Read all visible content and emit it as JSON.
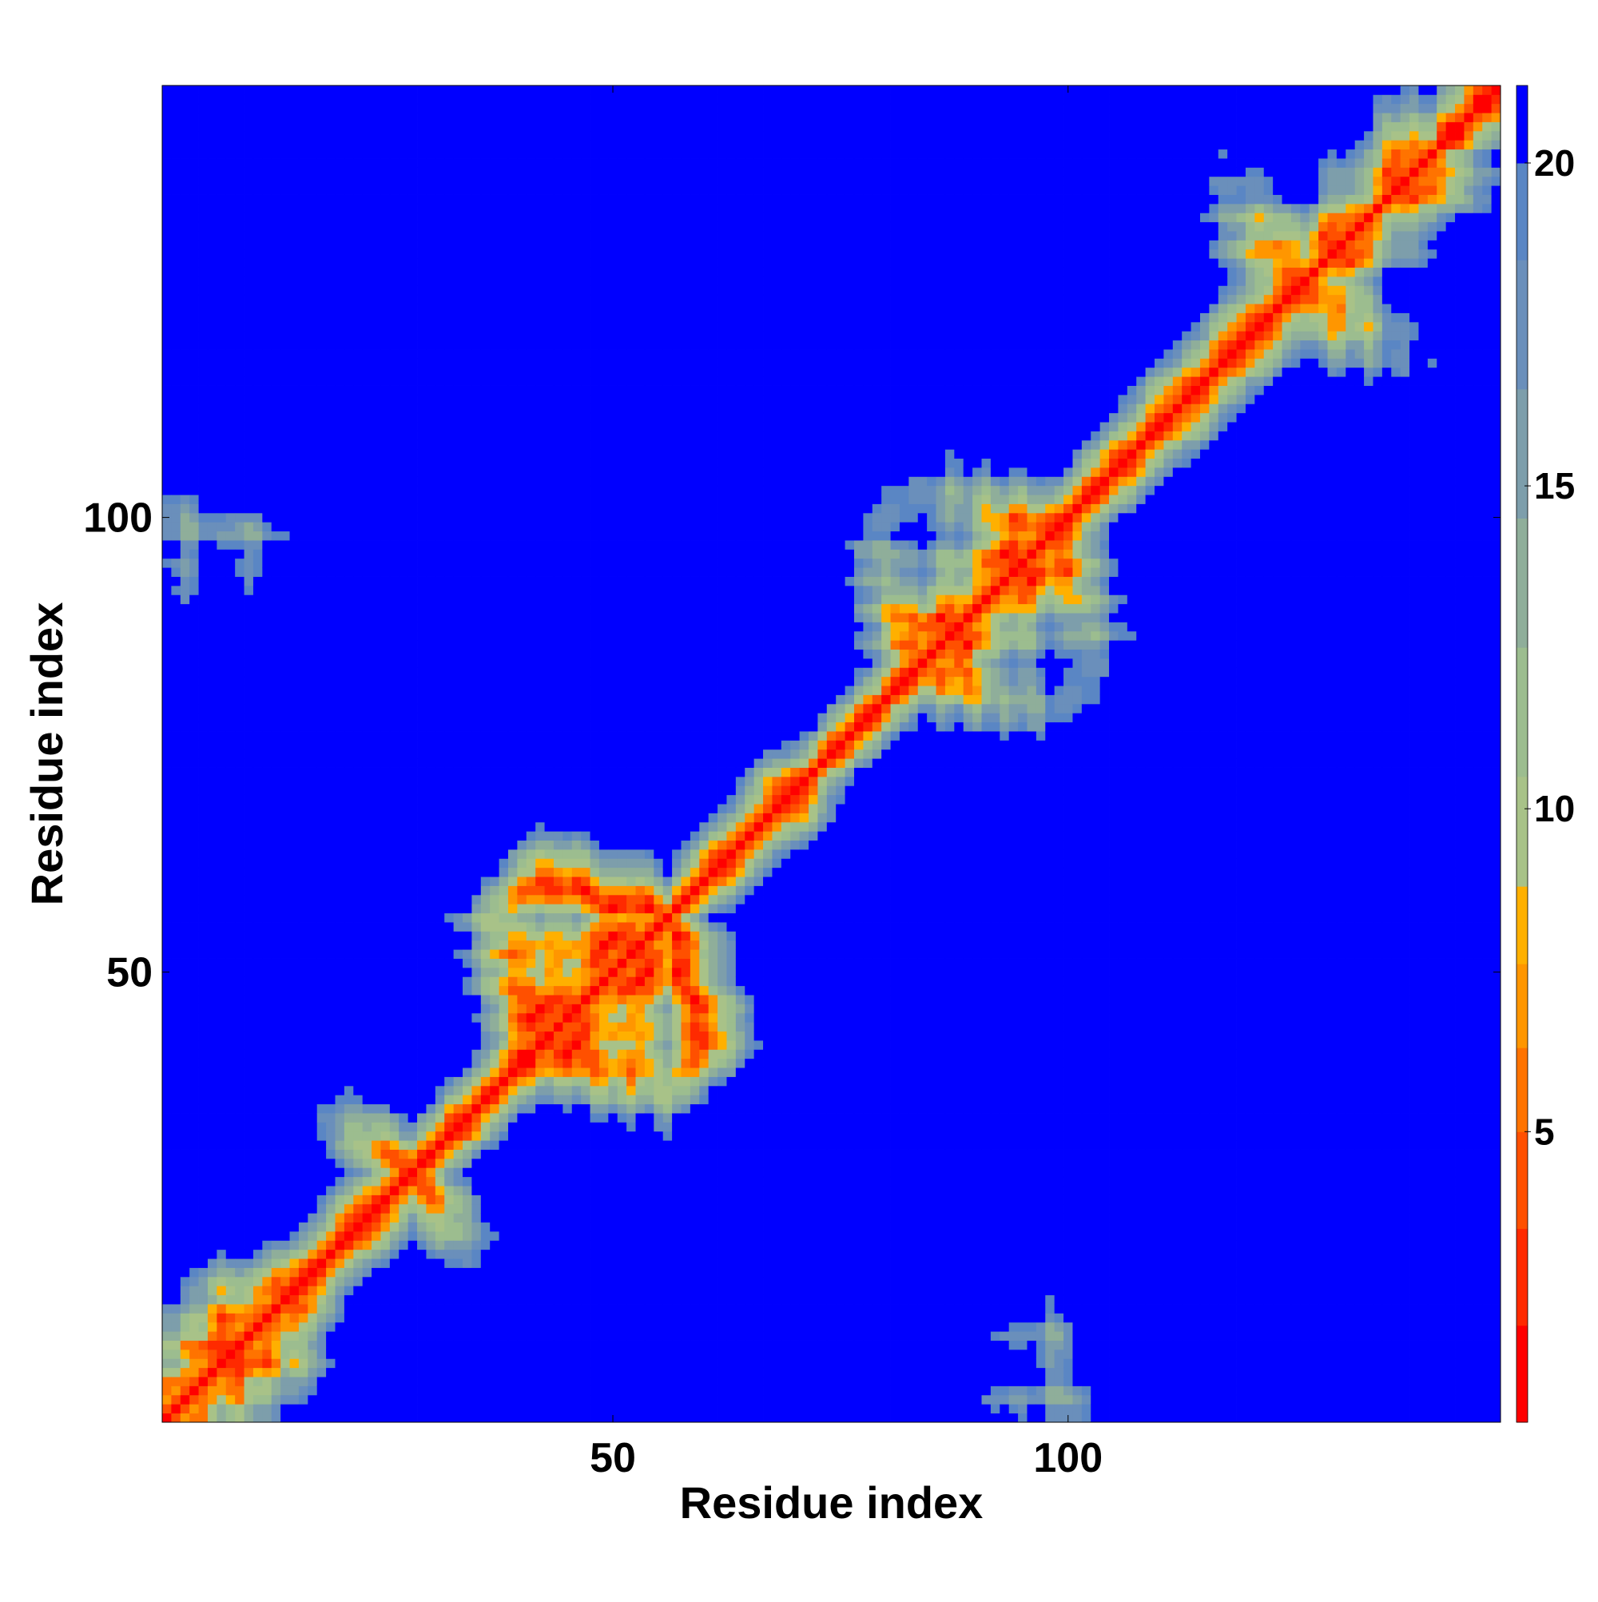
{
  "chart_data": {
    "type": "heatmap",
    "title": "",
    "xlabel": "Residue index",
    "ylabel": "Residue index",
    "n_residues": 147,
    "xlim": [
      1,
      147
    ],
    "ylim": [
      1,
      147
    ],
    "x_ticks": [
      {
        "value": 50,
        "label": "50"
      },
      {
        "value": 100,
        "label": "100"
      }
    ],
    "y_ticks": [
      {
        "value": 50,
        "label": "50"
      },
      {
        "value": 100,
        "label": "100"
      }
    ],
    "colorbar": {
      "range": [
        0.5,
        21.2
      ],
      "ticks": [
        {
          "value": 5,
          "label": "5"
        },
        {
          "value": 10,
          "label": "10"
        },
        {
          "value": 15,
          "label": "15"
        },
        {
          "value": 20,
          "label": "20"
        }
      ],
      "levels": [
        {
          "from": 0.5,
          "to": 2.0,
          "color": "#ff0000"
        },
        {
          "from": 2.0,
          "to": 3.5,
          "color": "#ff2a00"
        },
        {
          "from": 3.5,
          "to": 5.0,
          "color": "#ff5000"
        },
        {
          "from": 5.0,
          "to": 6.3,
          "color": "#ff7300"
        },
        {
          "from": 6.3,
          "to": 7.6,
          "color": "#ff9600"
        },
        {
          "from": 7.6,
          "to": 8.8,
          "color": "#ffb000"
        },
        {
          "from": 8.8,
          "to": 10.5,
          "color": "#a8c288"
        },
        {
          "from": 10.5,
          "to": 12.5,
          "color": "#9cbd8f"
        },
        {
          "from": 12.5,
          "to": 14.5,
          "color": "#8fae9a"
        },
        {
          "from": 14.5,
          "to": 16.5,
          "color": "#7d9eab"
        },
        {
          "from": 16.5,
          "to": 18.5,
          "color": "#6a8fbb"
        },
        {
          "from": 18.5,
          "to": 20.0,
          "color": "#5a86c4"
        },
        {
          "from": 20.0,
          "to": 21.2,
          "color": "#0000ff"
        }
      ]
    },
    "colors": {
      "far": "#0000ff",
      "near": "#ff0000"
    }
  }
}
